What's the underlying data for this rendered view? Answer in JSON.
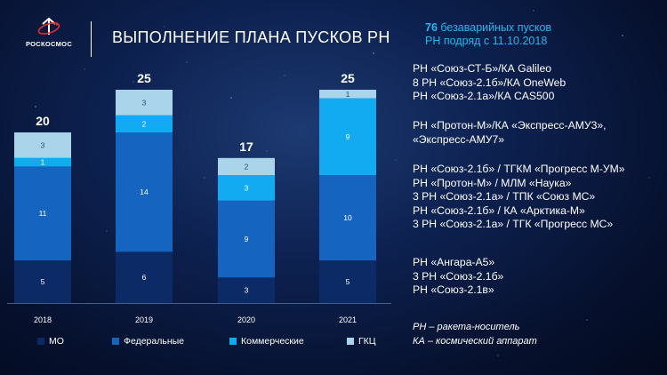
{
  "header": {
    "logo_text": "РОСКОСМОС",
    "title": "ВЫПОЛНЕНИЕ ПЛАНА ПУСКОВ РН"
  },
  "note": {
    "count": "76",
    "line1_rest": " безаварийных пусков",
    "line2": "РН подряд с 11.10.2018"
  },
  "launch_groups": [
    [
      "РН «Союз-СТ-Б»/КА Galileo",
      "8 РН «Союз-2.1б»/КА OneWeb",
      "РН «Союз-2.1а»/КА CAS500"
    ],
    [
      "РН «Протон-М»/КА «Экспресс-АМУ3»,",
      "«Экспресс-АМУ7»"
    ],
    [
      "РН «Союз-2.1б» / ТГКМ «Прогресс М-УМ»",
      "РН «Протон-М» / МЛМ «Наука»",
      "3 РН «Союз-2.1а» / ТПК «Союз МС»",
      "РН «Союз-2.1б» / КА «Арктика-М»",
      "3 РН «Союз-2.1а» / ТГК «Прогресс МС»"
    ],
    [
      "РН «Ангара-А5»",
      "3 РН «Союз-2.1б»",
      "РН «Союз-2.1в»"
    ]
  ],
  "footnotes": [
    "РН – ракета-носитель",
    "КА – космический аппарат"
  ],
  "colors": {
    "mo": "#0b2a66",
    "federal": "#1565c0",
    "commercial": "#12aaf0",
    "gkc": "#a9d4ea",
    "note": "#22b8f0"
  },
  "chart_data": {
    "type": "bar",
    "stacked": true,
    "categories": [
      "2018",
      "2019",
      "2020",
      "2021"
    ],
    "series": [
      {
        "name": "МО",
        "values": [
          5,
          6,
          3,
          5
        ]
      },
      {
        "name": "Федеральные",
        "values": [
          11,
          14,
          9,
          10
        ]
      },
      {
        "name": "Коммерческие",
        "values": [
          1,
          2,
          3,
          9
        ]
      },
      {
        "name": "ГКЦ",
        "values": [
          3,
          3,
          2,
          1
        ]
      }
    ],
    "totals": [
      20,
      25,
      17,
      25
    ],
    "legend_position": "bottom",
    "grid": false
  }
}
